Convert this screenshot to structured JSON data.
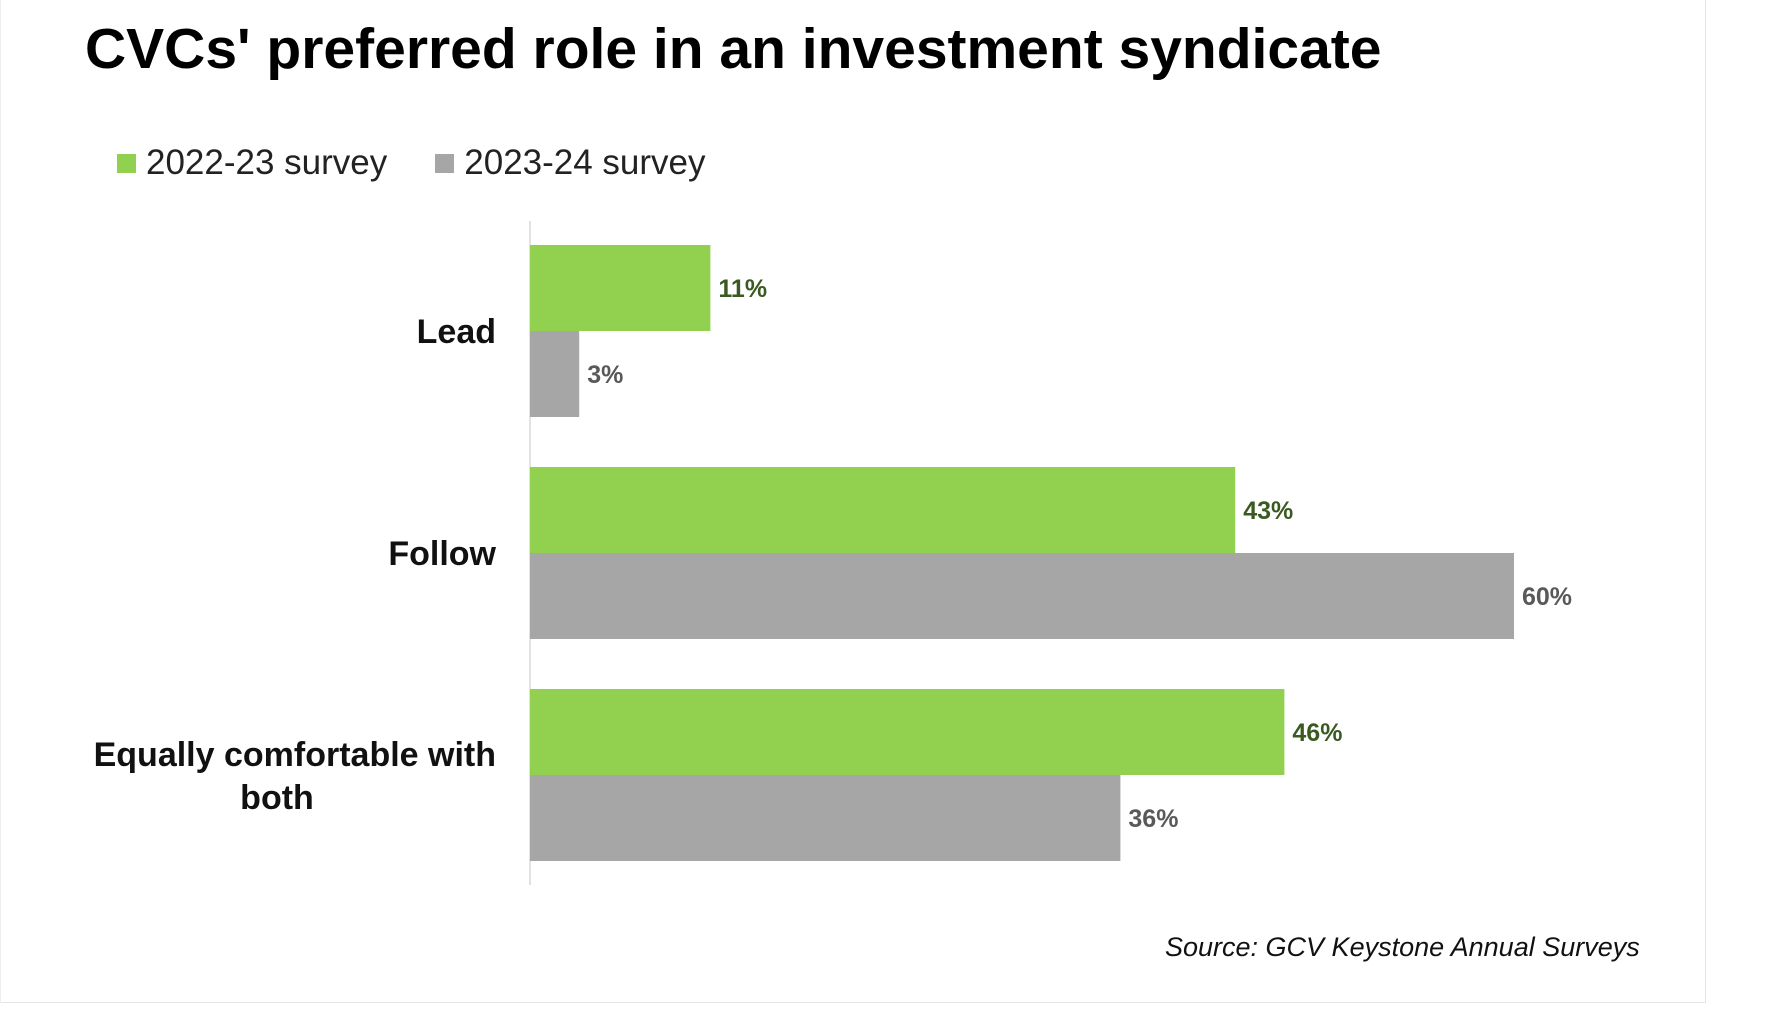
{
  "chart_data": {
    "type": "bar",
    "orientation": "horizontal",
    "title": "CVCs' preferred role in an investment syndicate",
    "categories": [
      "Lead",
      "Follow",
      "Equally comfortable with both"
    ],
    "series": [
      {
        "name": "2022-23 survey",
        "color": "#92d050",
        "label_color": "#3a5a22",
        "values": [
          11,
          43,
          46
        ],
        "labels": [
          "11%",
          "43%",
          "46%"
        ]
      },
      {
        "name": "2023-24 survey",
        "color": "#a6a6a6",
        "label_color": "#595959",
        "values": [
          3,
          60,
          36
        ],
        "labels": [
          "3%",
          "60%",
          "36%"
        ]
      }
    ],
    "xlabel": "",
    "ylabel": "",
    "xlim": [
      0,
      100
    ],
    "grid": false,
    "legend_position": "top-left",
    "source": "Source: GCV Keystone Annual Surveys"
  }
}
